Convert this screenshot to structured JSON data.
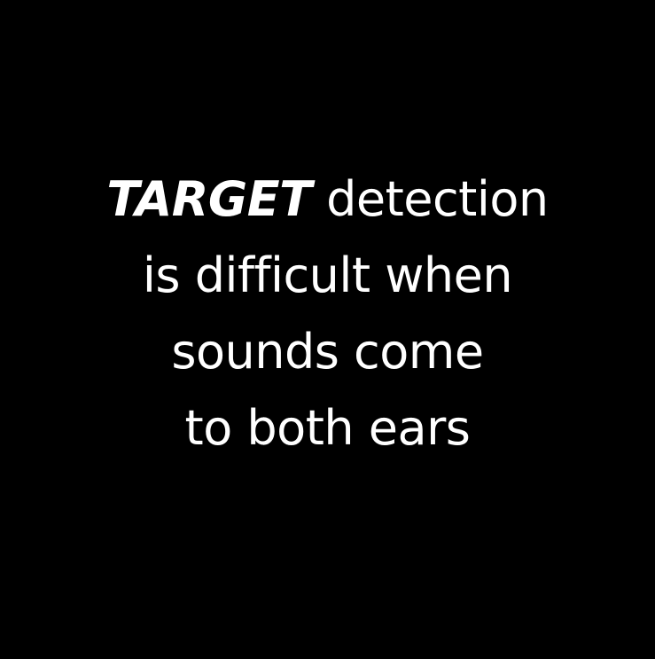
{
  "colors": {
    "background": "#000000",
    "text": "#ffffff"
  },
  "message": {
    "emphasis": "TARGET",
    "line1_rest": " detection",
    "line2": "is difficult when",
    "line3": "sounds come",
    "line4": "to both ears"
  }
}
